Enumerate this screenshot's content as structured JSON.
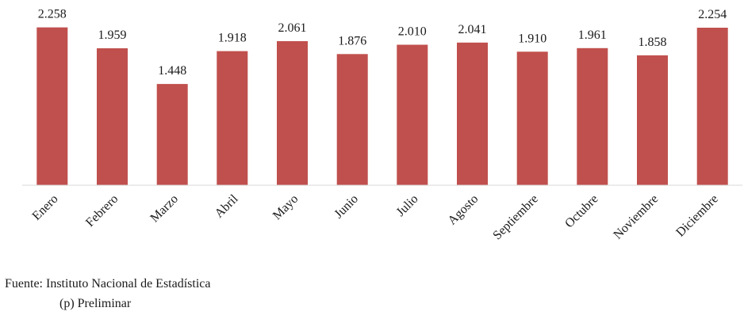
{
  "chart_data": {
    "type": "bar",
    "categories": [
      "Enero",
      "Febrero",
      "Marzo",
      "Abril",
      "Mayo",
      "Junio",
      "Julio",
      "Agosto",
      "Septiembre",
      "Octubre",
      "Noviembre",
      "Diciembre"
    ],
    "values": [
      2258,
      1959,
      1448,
      1918,
      2061,
      1876,
      2010,
      2041,
      1910,
      1961,
      1858,
      2254
    ],
    "value_labels": [
      "2.258",
      "1.959",
      "1.448",
      "1.918",
      "2.061",
      "1.876",
      "2.010",
      "2.041",
      "1.910",
      "1.961",
      "1.858",
      "2.254"
    ],
    "ylim": [
      0,
      2650
    ],
    "grid": false,
    "bar_color": "#c0504d"
  },
  "footer": {
    "source": "Fuente: Instituto Nacional de Estadística",
    "note": "(p) Preliminar"
  }
}
